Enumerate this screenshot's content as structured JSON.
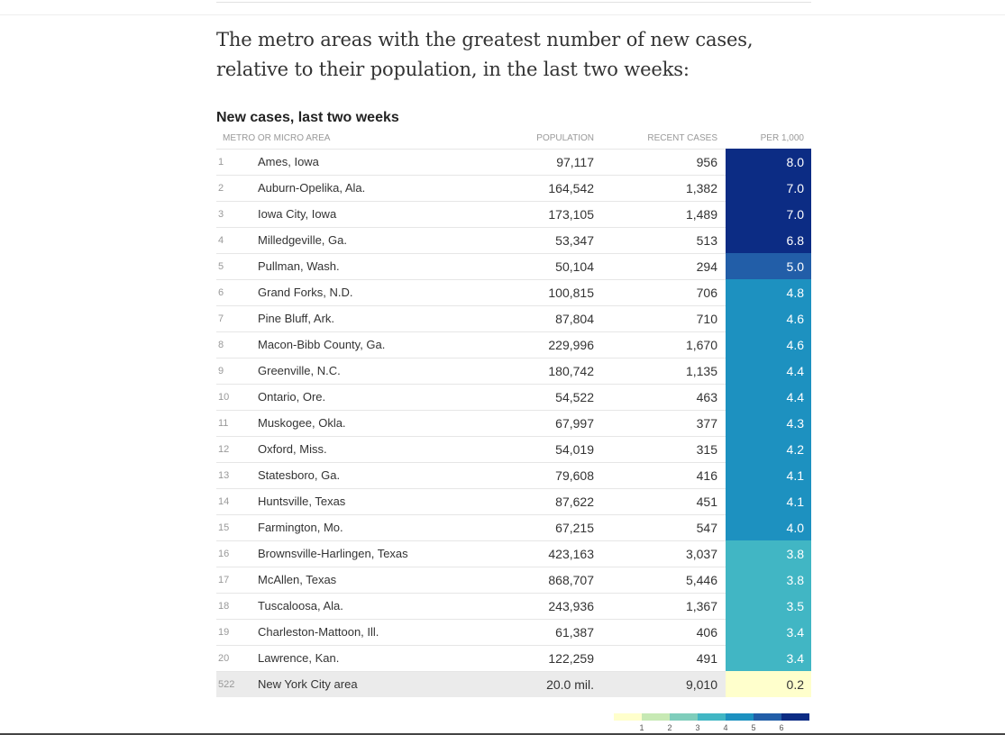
{
  "intro": "The metro areas with the greatest number of new cases, relative to their population, in the last two weeks:",
  "chart_data": {
    "type": "table",
    "title": "New cases, last two weeks",
    "columns": [
      "Metro or micro area",
      "Population",
      "Recent cases",
      "Per 1,000"
    ],
    "rows": [
      {
        "rank": "1",
        "name": "Ames, Iowa",
        "population": "97,117",
        "cases": "956",
        "per1000": "8.0",
        "value": 8.0
      },
      {
        "rank": "2",
        "name": "Auburn-Opelika, Ala.",
        "population": "164,542",
        "cases": "1,382",
        "per1000": "7.0",
        "value": 7.0
      },
      {
        "rank": "3",
        "name": "Iowa City, Iowa",
        "population": "173,105",
        "cases": "1,489",
        "per1000": "7.0",
        "value": 7.0
      },
      {
        "rank": "4",
        "name": "Milledgeville, Ga.",
        "population": "53,347",
        "cases": "513",
        "per1000": "6.8",
        "value": 6.8
      },
      {
        "rank": "5",
        "name": "Pullman, Wash.",
        "population": "50,104",
        "cases": "294",
        "per1000": "5.0",
        "value": 5.0
      },
      {
        "rank": "6",
        "name": "Grand Forks, N.D.",
        "population": "100,815",
        "cases": "706",
        "per1000": "4.8",
        "value": 4.8
      },
      {
        "rank": "7",
        "name": "Pine Bluff, Ark.",
        "population": "87,804",
        "cases": "710",
        "per1000": "4.6",
        "value": 4.6
      },
      {
        "rank": "8",
        "name": "Macon-Bibb County, Ga.",
        "population": "229,996",
        "cases": "1,670",
        "per1000": "4.6",
        "value": 4.6
      },
      {
        "rank": "9",
        "name": "Greenville, N.C.",
        "population": "180,742",
        "cases": "1,135",
        "per1000": "4.4",
        "value": 4.4
      },
      {
        "rank": "10",
        "name": "Ontario, Ore.",
        "population": "54,522",
        "cases": "463",
        "per1000": "4.4",
        "value": 4.4
      },
      {
        "rank": "11",
        "name": "Muskogee, Okla.",
        "population": "67,997",
        "cases": "377",
        "per1000": "4.3",
        "value": 4.3
      },
      {
        "rank": "12",
        "name": "Oxford, Miss.",
        "population": "54,019",
        "cases": "315",
        "per1000": "4.2",
        "value": 4.2
      },
      {
        "rank": "13",
        "name": "Statesboro, Ga.",
        "population": "79,608",
        "cases": "416",
        "per1000": "4.1",
        "value": 4.1
      },
      {
        "rank": "14",
        "name": "Huntsville, Texas",
        "population": "87,622",
        "cases": "451",
        "per1000": "4.1",
        "value": 4.1
      },
      {
        "rank": "15",
        "name": "Farmington, Mo.",
        "population": "67,215",
        "cases": "547",
        "per1000": "4.0",
        "value": 4.0
      },
      {
        "rank": "16",
        "name": "Brownsville-Harlingen, Texas",
        "population": "423,163",
        "cases": "3,037",
        "per1000": "3.8",
        "value": 3.8
      },
      {
        "rank": "17",
        "name": "McAllen, Texas",
        "population": "868,707",
        "cases": "5,446",
        "per1000": "3.8",
        "value": 3.8
      },
      {
        "rank": "18",
        "name": "Tuscaloosa, Ala.",
        "population": "243,936",
        "cases": "1,367",
        "per1000": "3.5",
        "value": 3.5
      },
      {
        "rank": "19",
        "name": "Charleston-Mattoon, Ill.",
        "population": "61,387",
        "cases": "406",
        "per1000": "3.4",
        "value": 3.4
      },
      {
        "rank": "20",
        "name": "Lawrence, Kan.",
        "population": "122,259",
        "cases": "491",
        "per1000": "3.4",
        "value": 3.4
      },
      {
        "rank": "522",
        "name": "New York City area",
        "population": "20.0 mil.",
        "cases": "9,010",
        "per1000": "0.2",
        "value": 0.2
      }
    ],
    "legend": {
      "ticks": [
        "1",
        "2",
        "3",
        "4",
        "5",
        "6"
      ],
      "colors": [
        "#ffffcc",
        "#c7e9b4",
        "#7fcdbb",
        "#41b6c4",
        "#1d91c0",
        "#225ea8",
        "#0c2c84"
      ]
    }
  }
}
